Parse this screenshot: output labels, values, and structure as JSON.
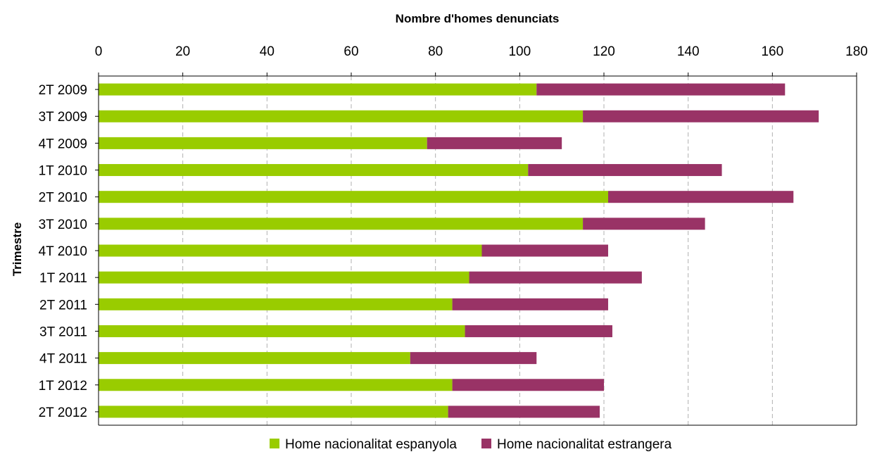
{
  "chart_data": {
    "type": "bar",
    "orientation": "horizontal",
    "stacked": true,
    "xlabel": "Nombre d'homes denunciats",
    "ylabel": "Trimestre",
    "xlim": [
      0,
      180
    ],
    "xticks": [
      0,
      20,
      40,
      60,
      80,
      100,
      120,
      140,
      160,
      180
    ],
    "x_axis_position": "top",
    "grid": "vertical dashed",
    "legend_position": "bottom",
    "categories": [
      "2T 2009",
      "3T 2009",
      "4T 2009",
      "1T 2010",
      "2T 2010",
      "3T 2010",
      "4T 2010",
      "1T 2011",
      "2T 2011",
      "3T 2011",
      "4T 2011",
      "1T 2012",
      "2T 2012"
    ],
    "series": [
      {
        "name": "Home nacionalitat espanyola",
        "color": "#99cc00",
        "values": [
          104,
          115,
          78,
          102,
          121,
          115,
          91,
          88,
          84,
          87,
          74,
          84,
          83
        ]
      },
      {
        "name": "Home nacionalitat estrangera",
        "color": "#993366",
        "values": [
          59,
          56,
          32,
          46,
          44,
          29,
          30,
          41,
          37,
          35,
          30,
          36,
          36
        ]
      }
    ]
  }
}
